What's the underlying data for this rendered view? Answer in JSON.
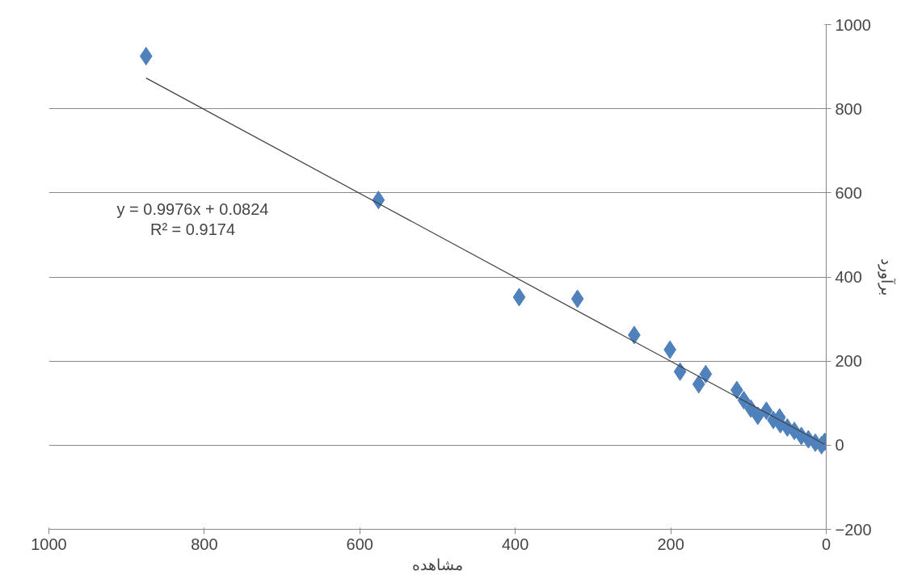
{
  "chart_data": {
    "type": "scatter",
    "xlabel": "مشاهده",
    "ylabel": "برآورد",
    "xlim": [
      1000,
      0
    ],
    "xticks": [
      1000,
      800,
      600,
      400,
      200,
      0
    ],
    "ylim": [
      -200,
      1000
    ],
    "yticks": [
      -200,
      0,
      200,
      400,
      600,
      800,
      1000
    ],
    "grid": "y",
    "marker": "diamond",
    "annotations": [
      "y = 0.9976x + 0.0824",
      "R² = 0.9174"
    ],
    "series": [
      {
        "type": "scatter",
        "color": "#4f81bd",
        "x": [
          875,
          576,
          395,
          320,
          247,
          201,
          188,
          164,
          155,
          115,
          106,
          97,
          88,
          77,
          68,
          60,
          59,
          50,
          41,
          32,
          23,
          14,
          6,
          2
        ],
        "values": [
          925,
          583,
          352,
          348,
          262,
          227,
          175,
          145,
          169,
          131,
          107,
          87,
          70,
          82,
          60,
          66,
          50,
          42,
          34,
          22,
          14,
          6,
          0,
          8
        ]
      },
      {
        "type": "line",
        "color": "#404040",
        "marker": "none",
        "x": [
          875,
          2
        ],
        "values": [
          873,
          2
        ]
      }
    ]
  }
}
